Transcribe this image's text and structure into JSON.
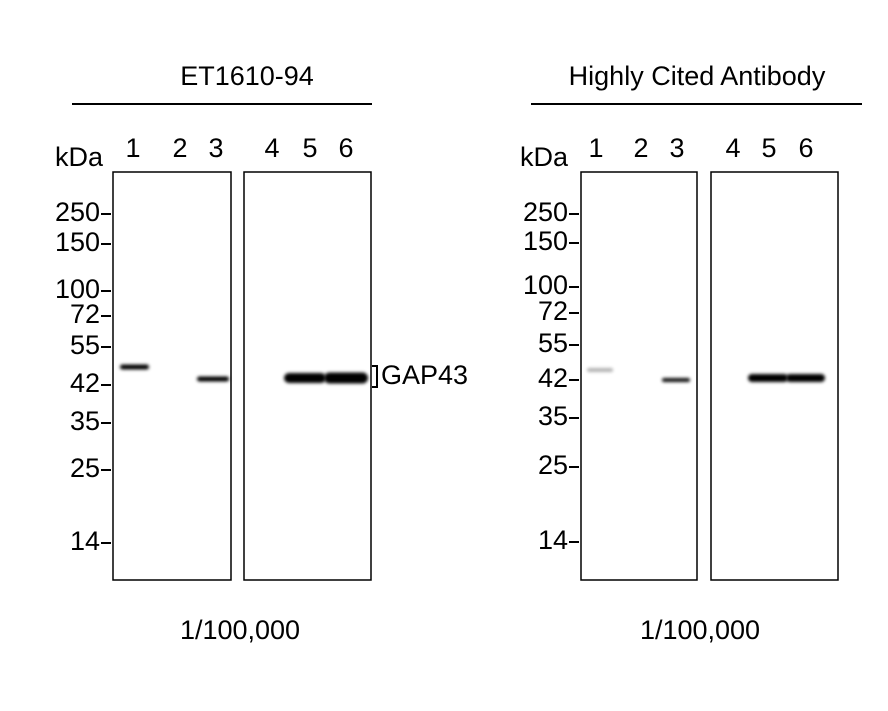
{
  "panels": [
    {
      "title": "ET1610-94",
      "unit": "kDa",
      "lanes": [
        "1",
        "2",
        "3",
        "4",
        "5",
        "6"
      ],
      "markers": [
        "250",
        "150",
        "100",
        "72",
        "55",
        "42",
        "35",
        "25",
        "14"
      ],
      "band_label": "GAP43",
      "dilution": "1/100,000"
    },
    {
      "title": "Highly Cited Antibody",
      "unit": "kDa",
      "lanes": [
        "1",
        "2",
        "3",
        "4",
        "5",
        "6"
      ],
      "markers": [
        "250",
        "150",
        "100",
        "72",
        "55",
        "42",
        "35",
        "25",
        "14"
      ],
      "dilution": "1/100,000"
    }
  ]
}
